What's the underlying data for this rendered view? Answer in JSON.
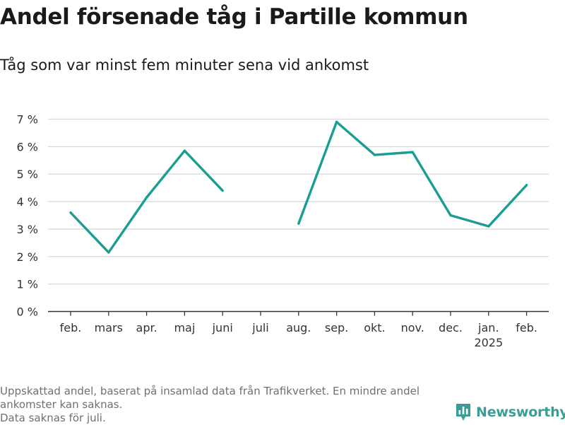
{
  "header": {
    "title": "Andel försenade tåg i Partille kommun",
    "subtitle": "Tåg som var minst fem minuter sena vid ankomst"
  },
  "footer": {
    "note_1": "Uppskattad andel, baserat på insamlad data från Trafikverket. En mindre andel ankomster kan saknas.",
    "note_2": "Data saknas för juli.",
    "brand": "Newsworthy",
    "brand_icon": "newsworthy-logo-icon"
  },
  "colors": {
    "line": "#1a9e92",
    "grid": "#d9d9d9",
    "axis": "#333333",
    "brand": "#3b9e94"
  },
  "chart_data": {
    "type": "line",
    "categories": [
      "feb.",
      "mars",
      "apr.",
      "maj",
      "juni",
      "juli",
      "aug.",
      "sep.",
      "okt.",
      "nov.",
      "dec.",
      "jan.",
      "feb."
    ],
    "year_labels": [
      {
        "index": 11,
        "label": "2025"
      }
    ],
    "series": [
      {
        "values": [
          3.6,
          2.15,
          4.15,
          5.85,
          4.4,
          null,
          3.2,
          6.9,
          5.7,
          5.8,
          3.5,
          3.1,
          4.6
        ]
      }
    ],
    "y_ticks": [
      0,
      1,
      2,
      3,
      4,
      5,
      6,
      7
    ],
    "y_tick_labels": [
      "0 %",
      "1 %",
      "2 %",
      "3 %",
      "4 %",
      "5 %",
      "6 %",
      "7 %"
    ],
    "ylim": [
      0,
      7
    ],
    "grid": true,
    "xlabel": "",
    "ylabel": ""
  }
}
